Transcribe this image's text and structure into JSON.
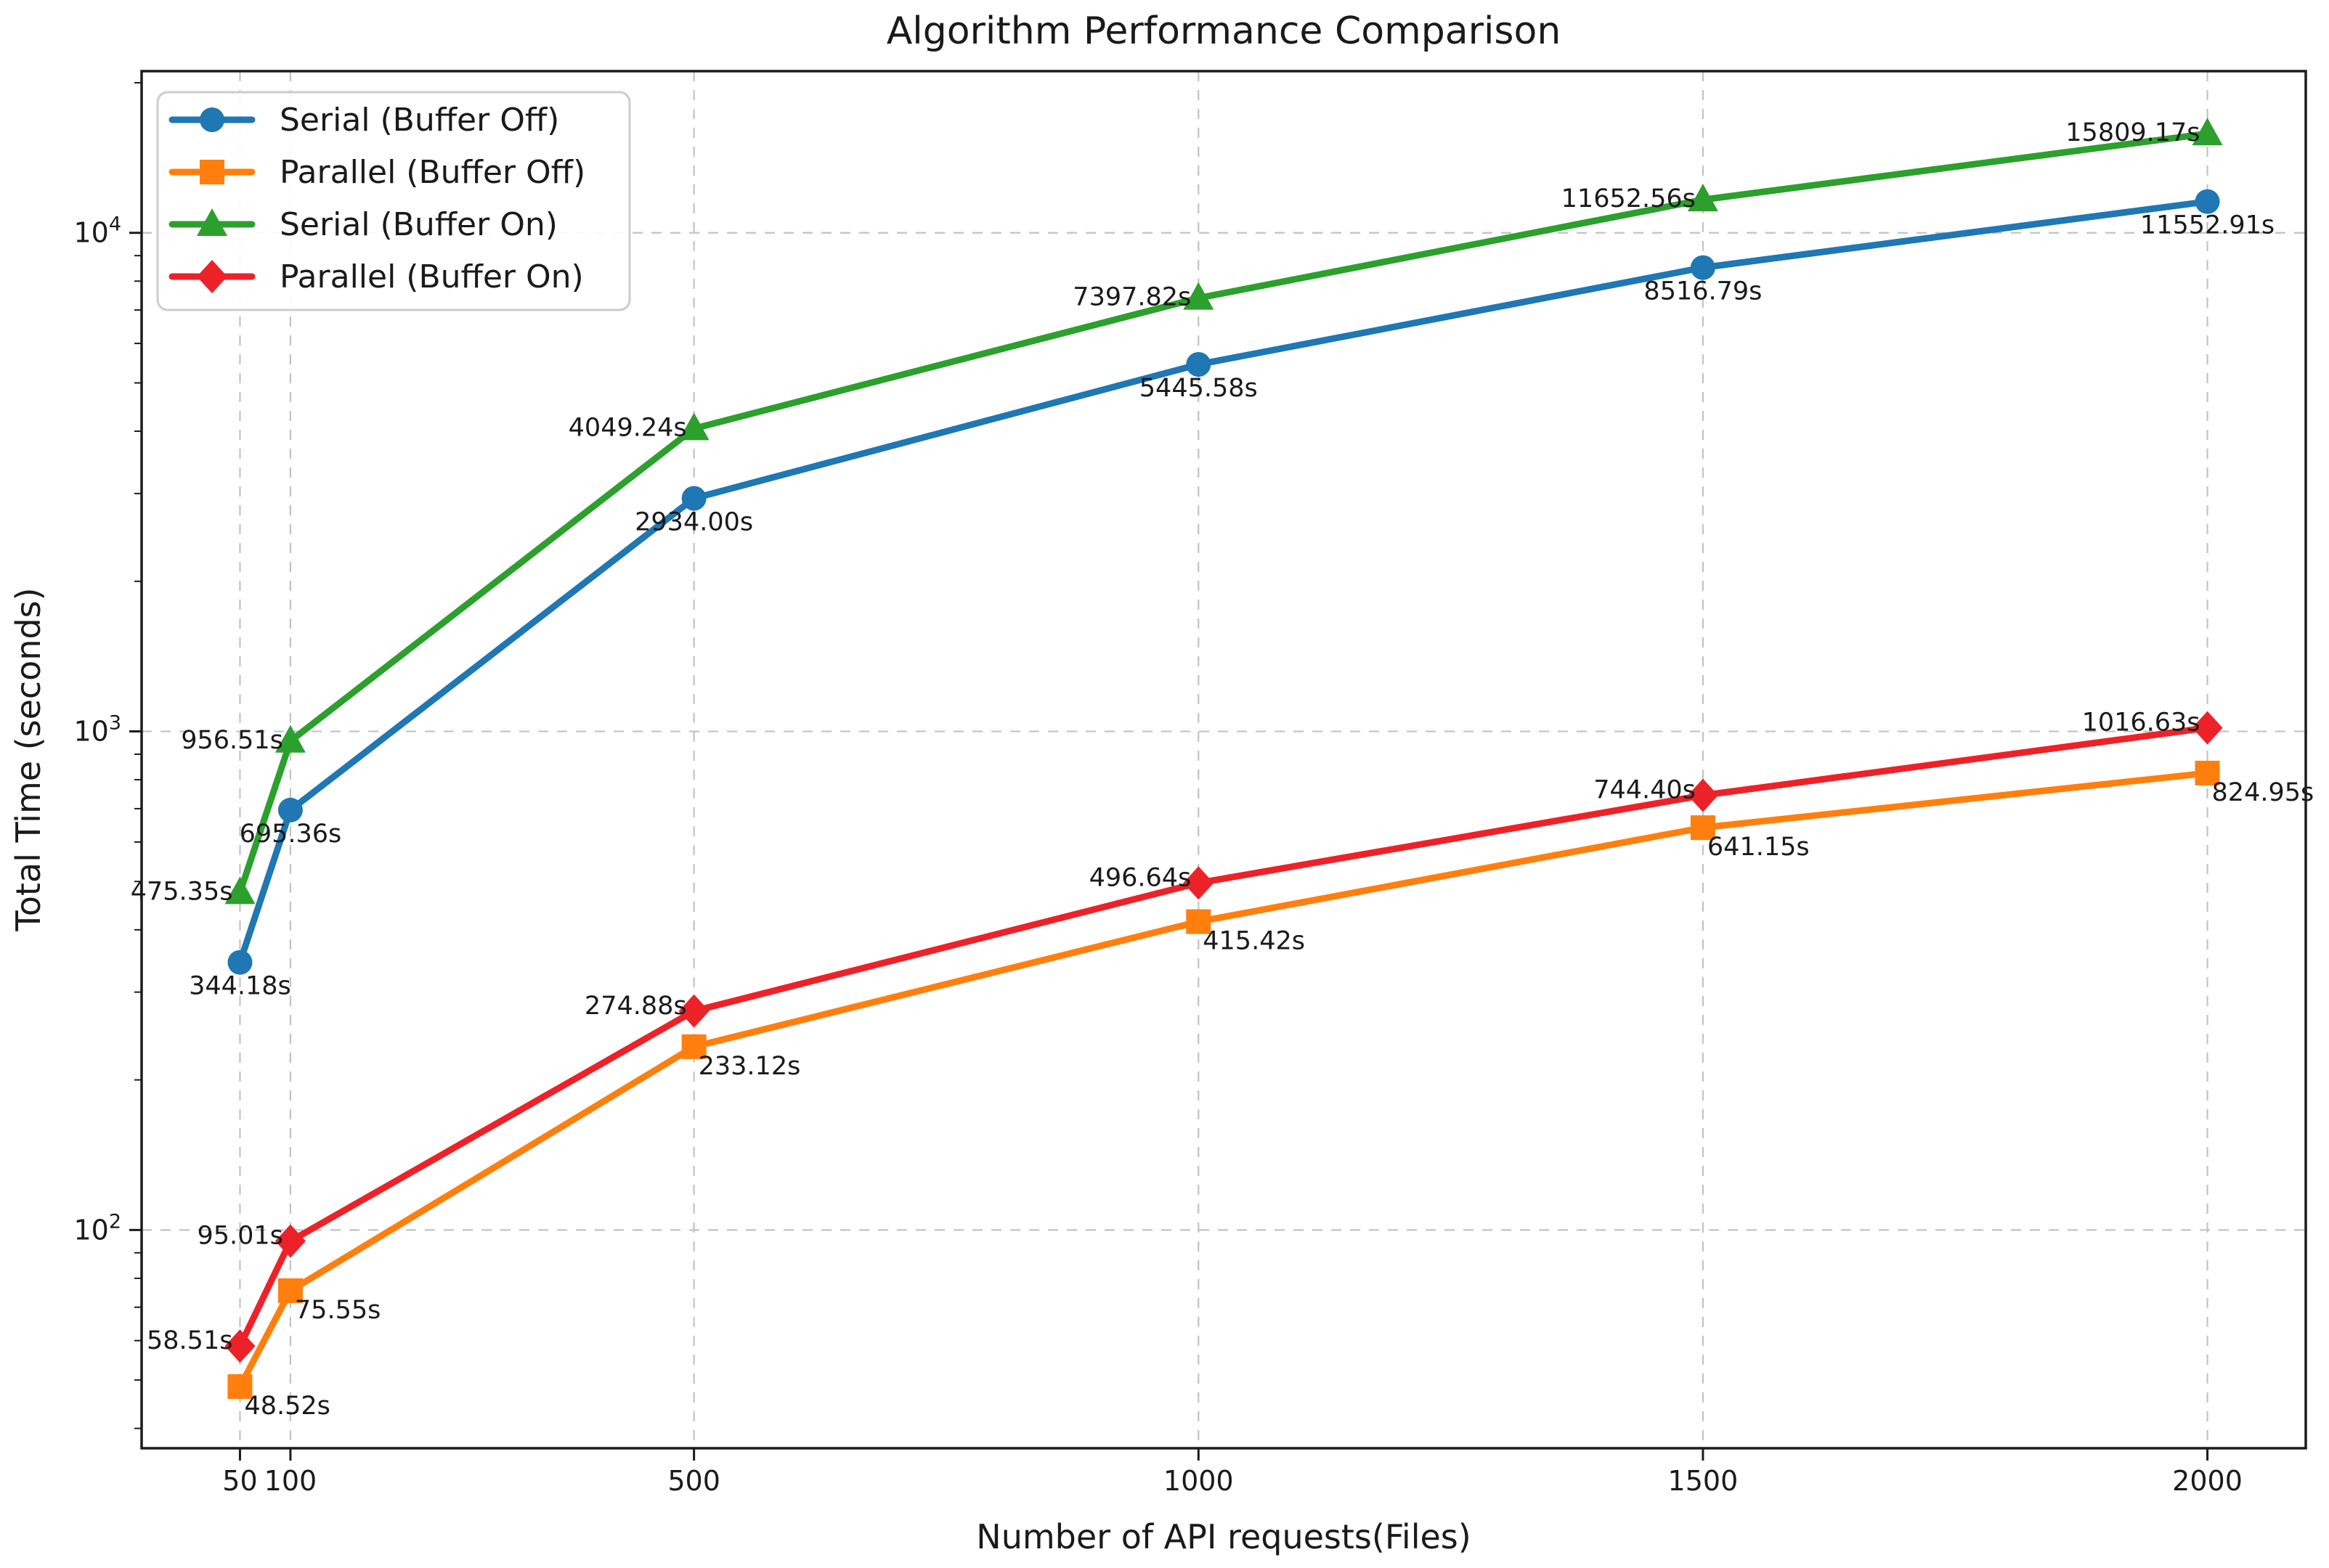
{
  "figure": {
    "background": "#ffffff",
    "spine_color": "#1c1c1c",
    "grid_color": "#c3c3c3",
    "text_color": "#1a1a1a"
  },
  "chart_data": {
    "type": "line",
    "title": "Algorithm Performance Comparison",
    "xlabel": "Number of API requests(Files)",
    "ylabel": "Total Time (seconds)",
    "x": [
      50,
      100,
      500,
      1000,
      1500,
      2000
    ],
    "xtick_labels": [
      "50",
      "100",
      "500",
      "1000",
      "1500",
      "2000"
    ],
    "xlim": [
      -47.5,
      2097.5
    ],
    "yscale": "log",
    "ylim": [
      36.5,
      21100
    ],
    "ytick_values": [
      100,
      1000,
      10000
    ],
    "ytick_labels": [
      {
        "base": "10",
        "exp": "2"
      },
      {
        "base": "10",
        "exp": "3"
      },
      {
        "base": "10",
        "exp": "4"
      }
    ],
    "grid": "major-dashed",
    "legend_position": "upper-left",
    "series": [
      {
        "name": "Serial (Buffer Off)",
        "color": "#1f77b4",
        "marker": "circle",
        "values": [
          344.18,
          695.36,
          2934.0,
          5445.58,
          8516.79,
          11552.91
        ],
        "labels": [
          "344.18s",
          "695.36s",
          "2934.00s",
          "5445.58s",
          "8516.79s",
          "11552.91s"
        ]
      },
      {
        "name": "Parallel (Buffer Off)",
        "color": "#ff7f0e",
        "marker": "square",
        "values": [
          48.52,
          75.55,
          233.12,
          415.42,
          641.15,
          824.95
        ],
        "labels": [
          "48.52s",
          "75.55s",
          "233.12s",
          "415.42s",
          "641.15s",
          "824.95s"
        ]
      },
      {
        "name": "Serial (Buffer On)",
        "color": "#2ca02c",
        "marker": "triangle",
        "values": [
          475.35,
          956.51,
          4049.24,
          7397.82,
          11652.56,
          15809.17
        ],
        "labels": [
          "475.35s",
          "956.51s",
          "4049.24s",
          "7397.82s",
          "11652.56s",
          "15809.17s"
        ]
      },
      {
        "name": "Parallel (Buffer On)",
        "color": "#ed2228",
        "marker": "diamond",
        "values": [
          58.51,
          95.01,
          274.88,
          496.64,
          744.4,
          1016.63
        ],
        "labels": [
          "58.51s",
          "95.01s",
          "274.88s",
          "496.64s",
          "744.40s",
          "1016.63s"
        ]
      }
    ]
  }
}
